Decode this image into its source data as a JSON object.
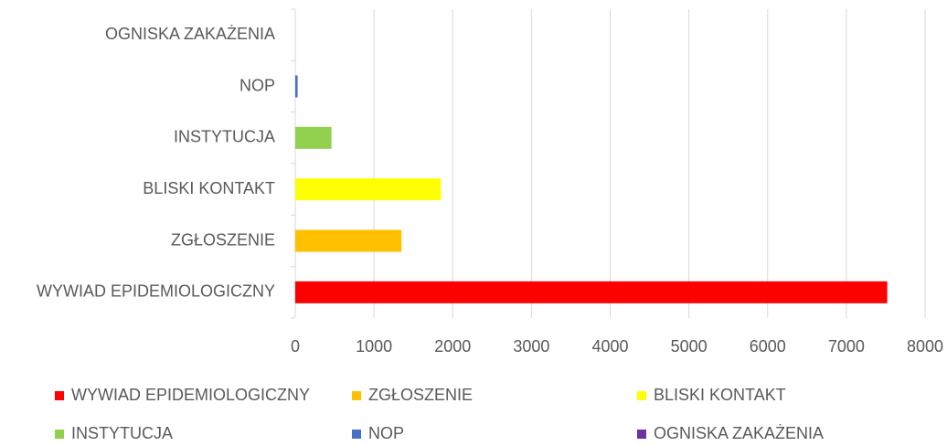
{
  "chart_data": {
    "type": "hbar",
    "categories": [
      "WYWIAD EPIDEMIOLOGICZNY",
      "ZGŁOSZENIE",
      "BLISKI KONTAKT",
      "INSTYTUCJA",
      "NOP",
      "OGNISKA ZAKAŻENIA"
    ],
    "values": [
      7520,
      1350,
      1850,
      460,
      30,
      0
    ],
    "colors": [
      "#ff0000",
      "#ffc000",
      "#ffff00",
      "#92d050",
      "#4472c4",
      "#7030a0"
    ],
    "xlim": [
      0,
      8000
    ],
    "xticks": [
      0,
      1000,
      2000,
      3000,
      4000,
      5000,
      6000,
      7000,
      8000
    ],
    "grid": true,
    "legend": "bottom"
  }
}
